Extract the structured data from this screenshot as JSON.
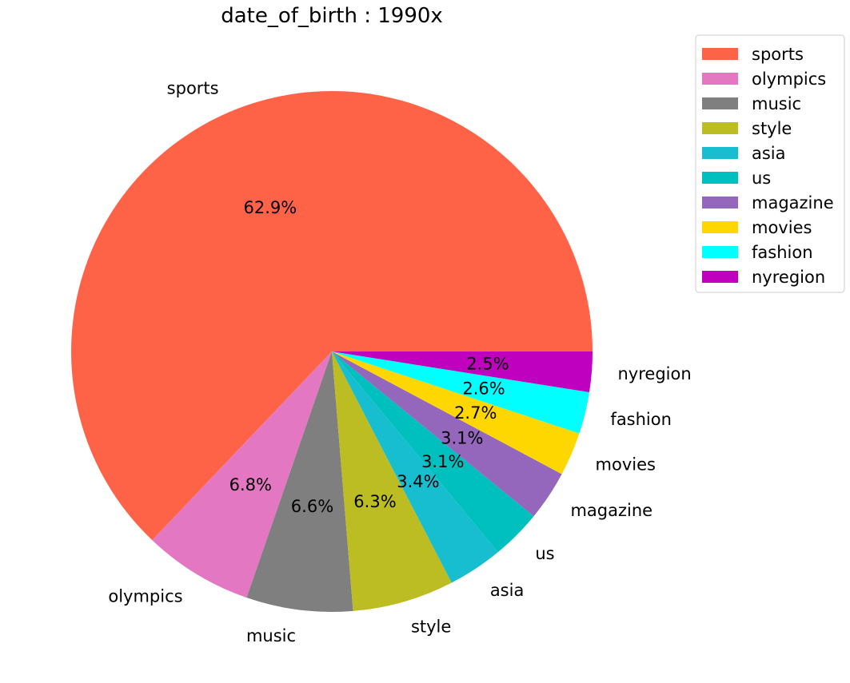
{
  "chart_data": {
    "type": "pie",
    "title": "date_of_birth : 1990x",
    "legend": "top-right",
    "slices": [
      {
        "label": "sports",
        "value": 62.9,
        "display": "62.9%",
        "color": "#FF6347"
      },
      {
        "label": "olympics",
        "value": 6.8,
        "display": "6.8%",
        "color": "#E377C2"
      },
      {
        "label": "music",
        "value": 6.6,
        "display": "6.6%",
        "color": "#7F7F7F"
      },
      {
        "label": "style",
        "value": 6.3,
        "display": "6.3%",
        "color": "#BCBD22"
      },
      {
        "label": "asia",
        "value": 3.4,
        "display": "3.4%",
        "color": "#17BECF"
      },
      {
        "label": "us",
        "value": 3.1,
        "display": "3.1%",
        "color": "#00BFBF"
      },
      {
        "label": "magazine",
        "value": 3.1,
        "display": "3.1%",
        "color": "#9467BD"
      },
      {
        "label": "movies",
        "value": 2.7,
        "display": "2.7%",
        "color": "#FFD700"
      },
      {
        "label": "fashion",
        "value": 2.6,
        "display": "2.6%",
        "color": "#00FFFF"
      },
      {
        "label": "nyregion",
        "value": 2.5,
        "display": "2.5%",
        "color": "#BF00BF"
      }
    ]
  }
}
